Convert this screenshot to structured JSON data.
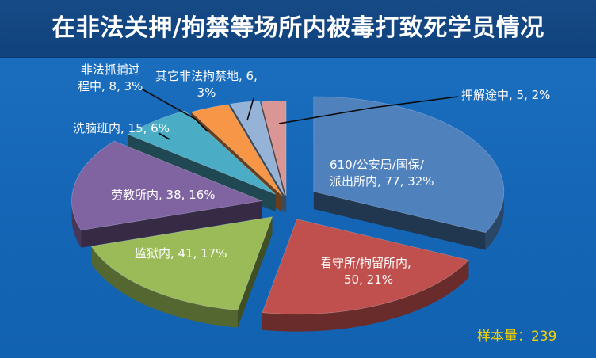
{
  "chart_data": {
    "type": "pie",
    "title": "在非法关押/拘禁等场所内被毒打致死学员情况",
    "slices": [
      {
        "label": "610/公安局/国保/派出所内",
        "value": 77,
        "percent": "32%",
        "color": "#4f81bd"
      },
      {
        "label": "看守所/拘留所内",
        "value": 50,
        "percent": "21%",
        "color": "#c0504d"
      },
      {
        "label": "监狱内",
        "value": 41,
        "percent": "17%",
        "color": "#9bbb59"
      },
      {
        "label": "劳教所内",
        "value": 38,
        "percent": "16%",
        "color": "#8064a2"
      },
      {
        "label": "洗脑班内",
        "value": 15,
        "percent": "6%",
        "color": "#4bacc6"
      },
      {
        "label": "非法抓捕过程中",
        "value": 8,
        "percent": "3%",
        "color": "#f79646"
      },
      {
        "label": "其它非法拘禁地",
        "value": 6,
        "percent": "3%",
        "color": "#95b3d7"
      },
      {
        "label": "押解途中",
        "value": 5,
        "percent": "2%",
        "color": "#d99694"
      }
    ],
    "sample_label": "样本量：239"
  },
  "labels": {
    "s0_line1": "610/公安局/国保/",
    "s0_line2": "派出所内, 77, 32%",
    "s1_line1": "看守所/拘留所内,",
    "s1_line2": "50, 21%",
    "s2": "监狱内, 41, 17%",
    "s3": "劳教所内, 38, 16%",
    "s4": "洗脑班内, 15, 6%",
    "s5_line1": "非法抓捕过",
    "s5_line2": "程中, 8, 3%",
    "s6_line1": "其它非法拘禁地, 6,",
    "s6_line2": "3%",
    "s7": "押解途中, 5, 2%"
  }
}
